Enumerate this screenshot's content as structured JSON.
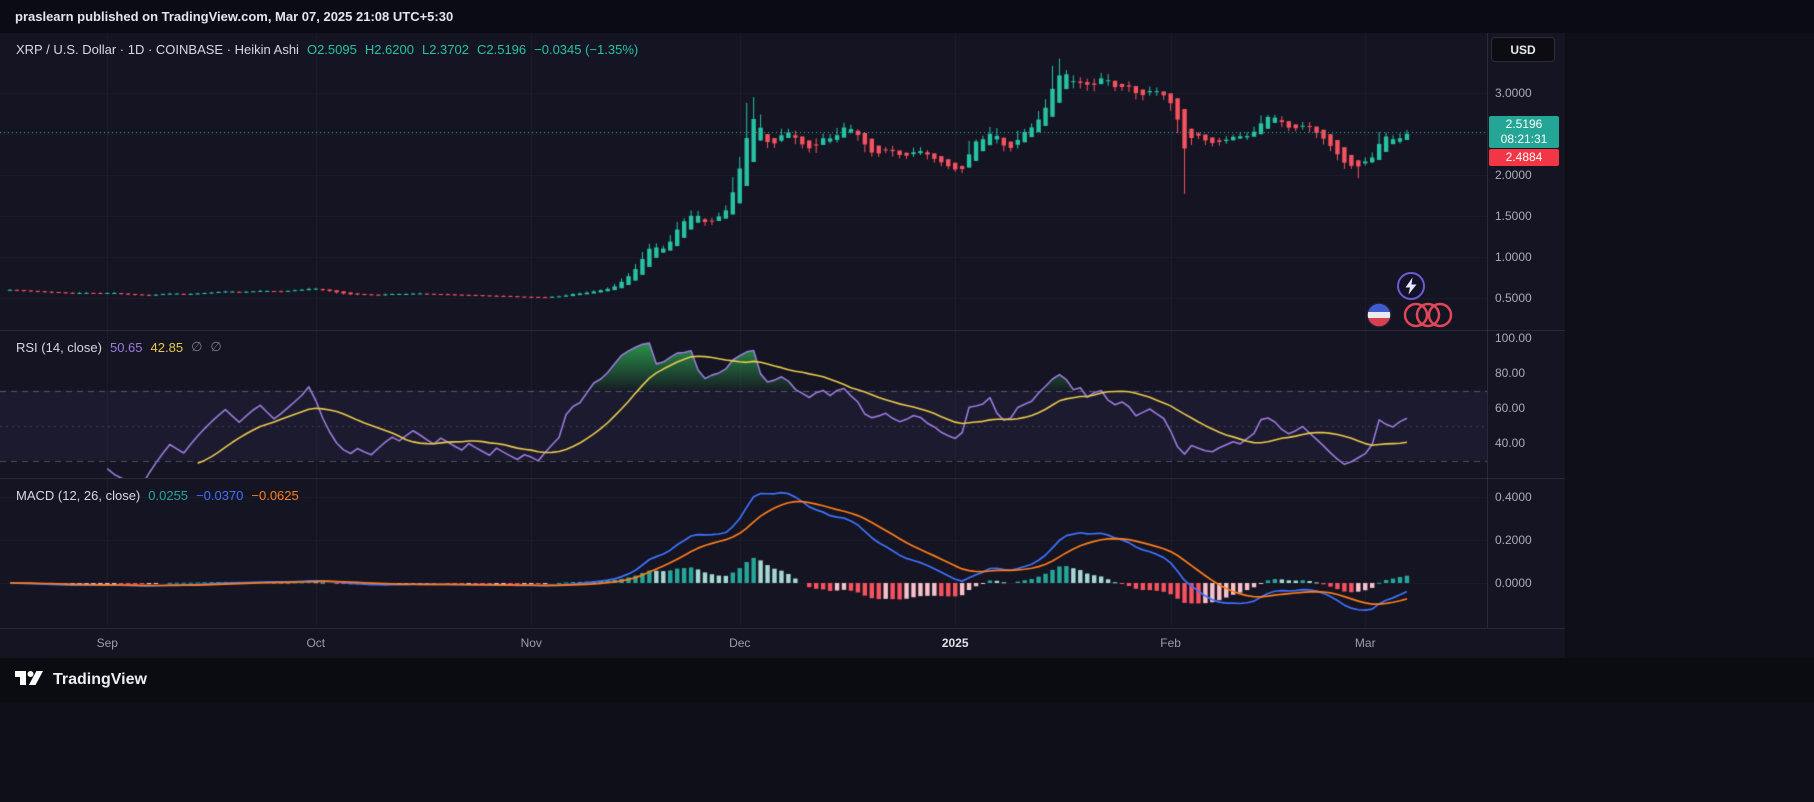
{
  "publisher_bar": {
    "text": "praslearn published on TradingView.com, Mar 07, 2025 21:08 UTC+5:30"
  },
  "symbol_header": {
    "title": "XRP / U.S. Dollar · 1D · COINBASE · Heikin Ashi",
    "open": "O2.5095",
    "high": "H2.6200",
    "low": "L2.3702",
    "close": "C2.5196",
    "change": "−0.0345 (−1.35%)"
  },
  "price_axis": {
    "currency_button": "USD",
    "labels": [
      {
        "text": "3.0000",
        "price": 3.0
      },
      {
        "text": "2.0000",
        "price": 2.0
      },
      {
        "text": "1.5000",
        "price": 1.5
      },
      {
        "text": "1.0000",
        "price": 1.0
      },
      {
        "text": "0.5000",
        "price": 0.5
      }
    ],
    "price_badge": {
      "price": "2.5196",
      "countdown": "08:21:31"
    },
    "alert_badge": {
      "price": "2.4884"
    }
  },
  "rsi_panel": {
    "title": "RSI (14, close)",
    "value": "50.65",
    "ma_value": "42.85",
    "empties": [
      "∅",
      "∅"
    ],
    "axis": [
      {
        "text": "100.00",
        "value": 100
      },
      {
        "text": "80.00",
        "value": 80
      },
      {
        "text": "60.00",
        "value": 60
      },
      {
        "text": "40.00",
        "value": 40
      }
    ]
  },
  "macd_panel": {
    "title": "MACD (12, 26, close)",
    "hist_value": "0.0255",
    "macd_value": "−0.0370",
    "signal_value": "−0.0625",
    "axis": [
      {
        "text": "0.4000",
        "value": 0.4
      },
      {
        "text": "0.2000",
        "value": 0.2
      },
      {
        "text": "0.0000",
        "value": 0.0
      }
    ]
  },
  "footer": {
    "brand": "TradingView"
  },
  "colors": {
    "up": "#27c2a3",
    "down": "#f7525f",
    "price_line": "#27c2a3",
    "badge_up": "#23a695",
    "badge_alert": "#f23645",
    "rsi": "#9a7bdc",
    "rsi_ma": "#e8c94e",
    "rsi_cloud": "#2e9e4f",
    "macd": "#3f72ff",
    "signal": "#ff7d1a",
    "hist_up": "#26a69a",
    "hist_up_weak": "#a5d9d2",
    "hist_dn": "#f7525f",
    "hist_dn_weak": "#f9c1ca",
    "grid": "rgba(139,146,164,0.08)",
    "axis_text": "#a8adb8"
  },
  "chart_data": {
    "type": "candlestick",
    "style": "Heikin Ashi",
    "symbol": "XRP / U.S. Dollar",
    "exchange": "COINBASE",
    "interval": "1D",
    "ohlc_display": {
      "open": 2.5095,
      "high": 2.62,
      "low": 2.3702,
      "close": 2.5196,
      "change": -0.0345,
      "change_pct": -1.35
    },
    "y_axis": {
      "min": 0.07,
      "max": 3.73,
      "gridlines": [
        0.5,
        1.0,
        1.5,
        2.0,
        2.5,
        3.0
      ]
    },
    "current_price": 2.5196,
    "closes": [
      0.6,
      0.592,
      0.585,
      0.58,
      0.576,
      0.571,
      0.566,
      0.561,
      0.556,
      0.56,
      0.565,
      0.561,
      0.556,
      0.56,
      0.565,
      0.555,
      0.548,
      0.542,
      0.536,
      0.532,
      0.538,
      0.544,
      0.55,
      0.556,
      0.551,
      0.546,
      0.552,
      0.558,
      0.564,
      0.57,
      0.576,
      0.582,
      0.577,
      0.572,
      0.578,
      0.584,
      0.589,
      0.584,
      0.579,
      0.584,
      0.59,
      0.597,
      0.605,
      0.618,
      0.608,
      0.592,
      0.576,
      0.56,
      0.548,
      0.541,
      0.546,
      0.54,
      0.535,
      0.541,
      0.547,
      0.552,
      0.547,
      0.552,
      0.557,
      0.552,
      0.546,
      0.541,
      0.546,
      0.541,
      0.536,
      0.531,
      0.536,
      0.531,
      0.526,
      0.521,
      0.526,
      0.521,
      0.516,
      0.511,
      0.514,
      0.511,
      0.506,
      0.511,
      0.516,
      0.521,
      0.541,
      0.551,
      0.556,
      0.571,
      0.591,
      0.601,
      0.621,
      0.661,
      0.731,
      0.801,
      0.901,
      1.051,
      1.151,
      1.081,
      1.121,
      1.251,
      1.421,
      1.451,
      1.551,
      1.451,
      1.401,
      1.471,
      1.521,
      1.621,
      1.951,
      2.201,
      2.551,
      2.701,
      2.451,
      2.351,
      2.421,
      2.551,
      2.501,
      2.401,
      2.351,
      2.301,
      2.421,
      2.481,
      2.421,
      2.551,
      2.601,
      2.521,
      2.451,
      2.301,
      2.251,
      2.281,
      2.321,
      2.261,
      2.221,
      2.251,
      2.301,
      2.281,
      2.221,
      2.181,
      2.121,
      2.081,
      2.051,
      2.101,
      2.401,
      2.421,
      2.451,
      2.551,
      2.401,
      2.321,
      2.351,
      2.501,
      2.551,
      2.601,
      2.751,
      2.901,
      3.101,
      3.251,
      3.201,
      3.101,
      3.151,
      3.051,
      3.151,
      3.201,
      3.101,
      3.051,
      3.101,
      3.051,
      2.951,
      3.001,
      3.051,
      3.001,
      2.951,
      2.801,
      2.551,
      2.401,
      2.501,
      2.451,
      2.401,
      2.381,
      2.421,
      2.451,
      2.481,
      2.451,
      2.501,
      2.551,
      2.701,
      2.721,
      2.681,
      2.601,
      2.551,
      2.581,
      2.621,
      2.551,
      2.481,
      2.401,
      2.301,
      2.201,
      2.101,
      2.121,
      2.151,
      2.181,
      2.251,
      2.501,
      2.451,
      2.421,
      2.481,
      2.5196
    ],
    "wick_overrides": {
      "106": {
        "high": 2.88
      },
      "107": {
        "high": 2.95
      },
      "150": {
        "high": 3.33
      },
      "151": {
        "high": 3.42
      },
      "169": {
        "low": 1.77
      },
      "194": {
        "low": 1.96
      }
    },
    "month_ticks": [
      {
        "label": "Sep",
        "i": 14
      },
      {
        "label": "Oct",
        "i": 44
      },
      {
        "label": "Nov",
        "i": 75
      },
      {
        "label": "Dec",
        "i": 105
      },
      {
        "label": "2025",
        "i": 136,
        "major": true
      },
      {
        "label": "Feb",
        "i": 167
      },
      {
        "label": "Mar",
        "i": 195
      }
    ],
    "indicators": {
      "rsi": {
        "length": 14,
        "source": "close",
        "last": 50.65,
        "ma_last": 42.85,
        "upper_band": 70,
        "lower_band": 30,
        "middle": 50,
        "y_range": [
          20,
          104
        ]
      },
      "macd": {
        "fast": 12,
        "slow": 26,
        "signal": 9,
        "last_hist": 0.0255,
        "last_macd": -0.037,
        "last_signal": -0.0625,
        "y_range": [
          -0.209,
          0.488
        ]
      }
    }
  }
}
